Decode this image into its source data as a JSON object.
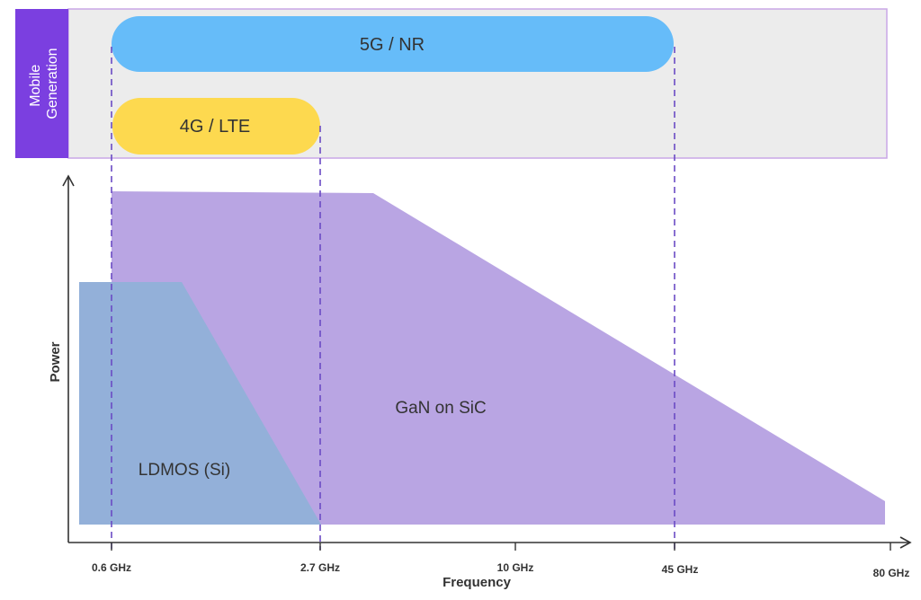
{
  "colors": {
    "generation_panel_bg": "#ececec",
    "generation_panel_border": "#c9a6e6",
    "side_tab": "#7b3fe0",
    "nr_band": "#66bcf9",
    "lte_band": "#fdd94f",
    "gan_region": "#b9a5e3",
    "ldmos_region": "#93b0d9",
    "marker_line": "#6a4bc4",
    "axis": "#333333"
  },
  "header": {
    "side_label_line1": "Mobile",
    "side_label_line2": "Generation"
  },
  "bands": {
    "nr": {
      "label": "5G / NR",
      "from_ghz": 0.6,
      "to_ghz": 45
    },
    "lte": {
      "label": "4G / LTE",
      "from_ghz": 0.6,
      "to_ghz": 2.7
    }
  },
  "regions": {
    "gan": {
      "label": "GaN on SiC"
    },
    "ldmos": {
      "label": "LDMOS (Si)"
    }
  },
  "axes": {
    "x_label": "Frequency",
    "y_label": "Power",
    "ticks": [
      {
        "value": 0.6,
        "label": "0.6 GHz"
      },
      {
        "value": 2.7,
        "label": "2.7 GHz"
      },
      {
        "value": 10,
        "label": "10 GHz"
      },
      {
        "value": 45,
        "label": "45 GHz"
      },
      {
        "value": 80,
        "label": "80 GHz"
      }
    ]
  }
}
